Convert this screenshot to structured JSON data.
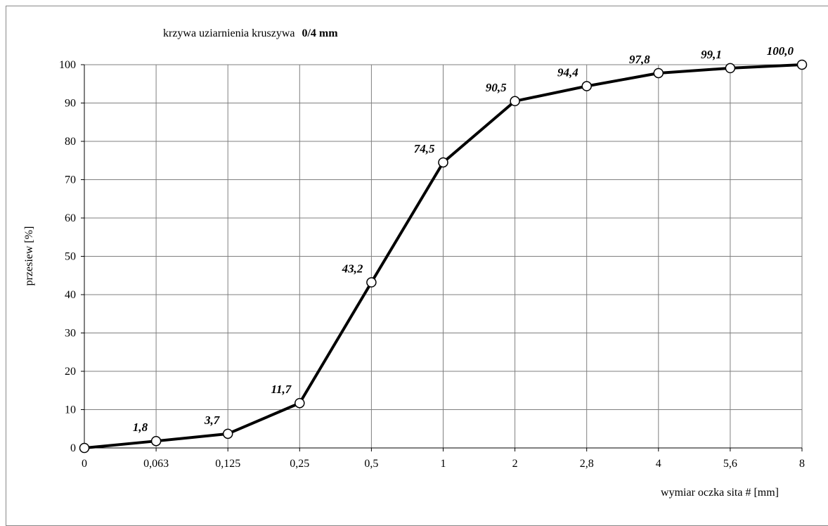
{
  "chart_data": {
    "type": "line",
    "title": "krzywa uziarnienia kruszywa",
    "title_bold": "0/4 mm",
    "xlabel": "wymiar oczka sita # [mm]",
    "ylabel": "przesiew [%]",
    "categories": [
      "0",
      "0,063",
      "0,125",
      "0,25",
      "0,5",
      "1",
      "2",
      "2,8",
      "4",
      "5,6",
      "8"
    ],
    "values": [
      0,
      1.8,
      3.7,
      11.7,
      43.2,
      74.5,
      90.5,
      94.4,
      97.8,
      99.1,
      100.0
    ],
    "data_labels": [
      "",
      "1,8",
      "3,7",
      "11,7",
      "43,2",
      "74,5",
      "90,5",
      "94,4",
      "97,8",
      "99,1",
      "100,0"
    ],
    "y_ticks": [
      0,
      10,
      20,
      30,
      40,
      50,
      60,
      70,
      80,
      90,
      100
    ],
    "ylim": [
      0,
      100
    ],
    "grid": true,
    "line_color": "#000000",
    "marker_fill": "#ffffff",
    "legend": "none"
  }
}
